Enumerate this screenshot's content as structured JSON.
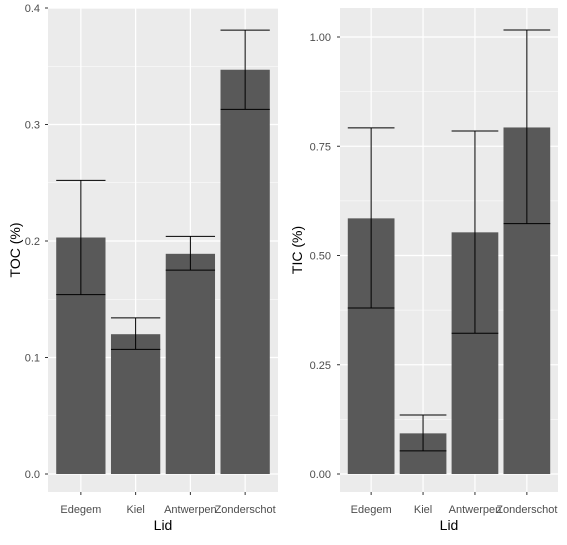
{
  "colors": {
    "panel_background": "#ebebeb",
    "gridline": "#ffffff",
    "bar_fill": "#595959",
    "errorbar": "#000000",
    "tick_text": "#4d4d4d",
    "axis_title": "#000000"
  },
  "chart_data": [
    {
      "type": "bar",
      "categories": [
        "Edegem",
        "Kiel",
        "Antwerpen",
        "Zonderschot"
      ],
      "values": [
        0.203,
        0.12,
        0.189,
        0.347
      ],
      "error_low": [
        0.154,
        0.107,
        0.175,
        0.313
      ],
      "error_high": [
        0.252,
        0.134,
        0.204,
        0.381
      ],
      "xlabel": "Lid",
      "ylabel": "TOC (%)",
      "ylim": [
        0,
        0.4
      ],
      "yticks": [
        0,
        0.1,
        0.2,
        0.3,
        0.4
      ],
      "ytick_labels": [
        "0.0",
        "0.1",
        "0.2",
        "0.3",
        "0.4"
      ],
      "grid": true,
      "legend": "none"
    },
    {
      "type": "bar",
      "categories": [
        "Edegem",
        "Kiel",
        "Antwerpen",
        "Zonderschot"
      ],
      "values": [
        0.585,
        0.093,
        0.553,
        0.793
      ],
      "error_low": [
        0.38,
        0.053,
        0.322,
        0.573
      ],
      "error_high": [
        0.792,
        0.135,
        0.785,
        1.016
      ],
      "xlabel": "Lid",
      "ylabel": "TIC (%)",
      "ylim": [
        0,
        1.0
      ],
      "yticks": [
        0,
        0.25,
        0.5,
        0.75,
        1.0
      ],
      "ytick_labels": [
        "0.00",
        "0.25",
        "0.50",
        "0.75",
        "1.00"
      ],
      "grid": true,
      "legend": "none"
    }
  ]
}
